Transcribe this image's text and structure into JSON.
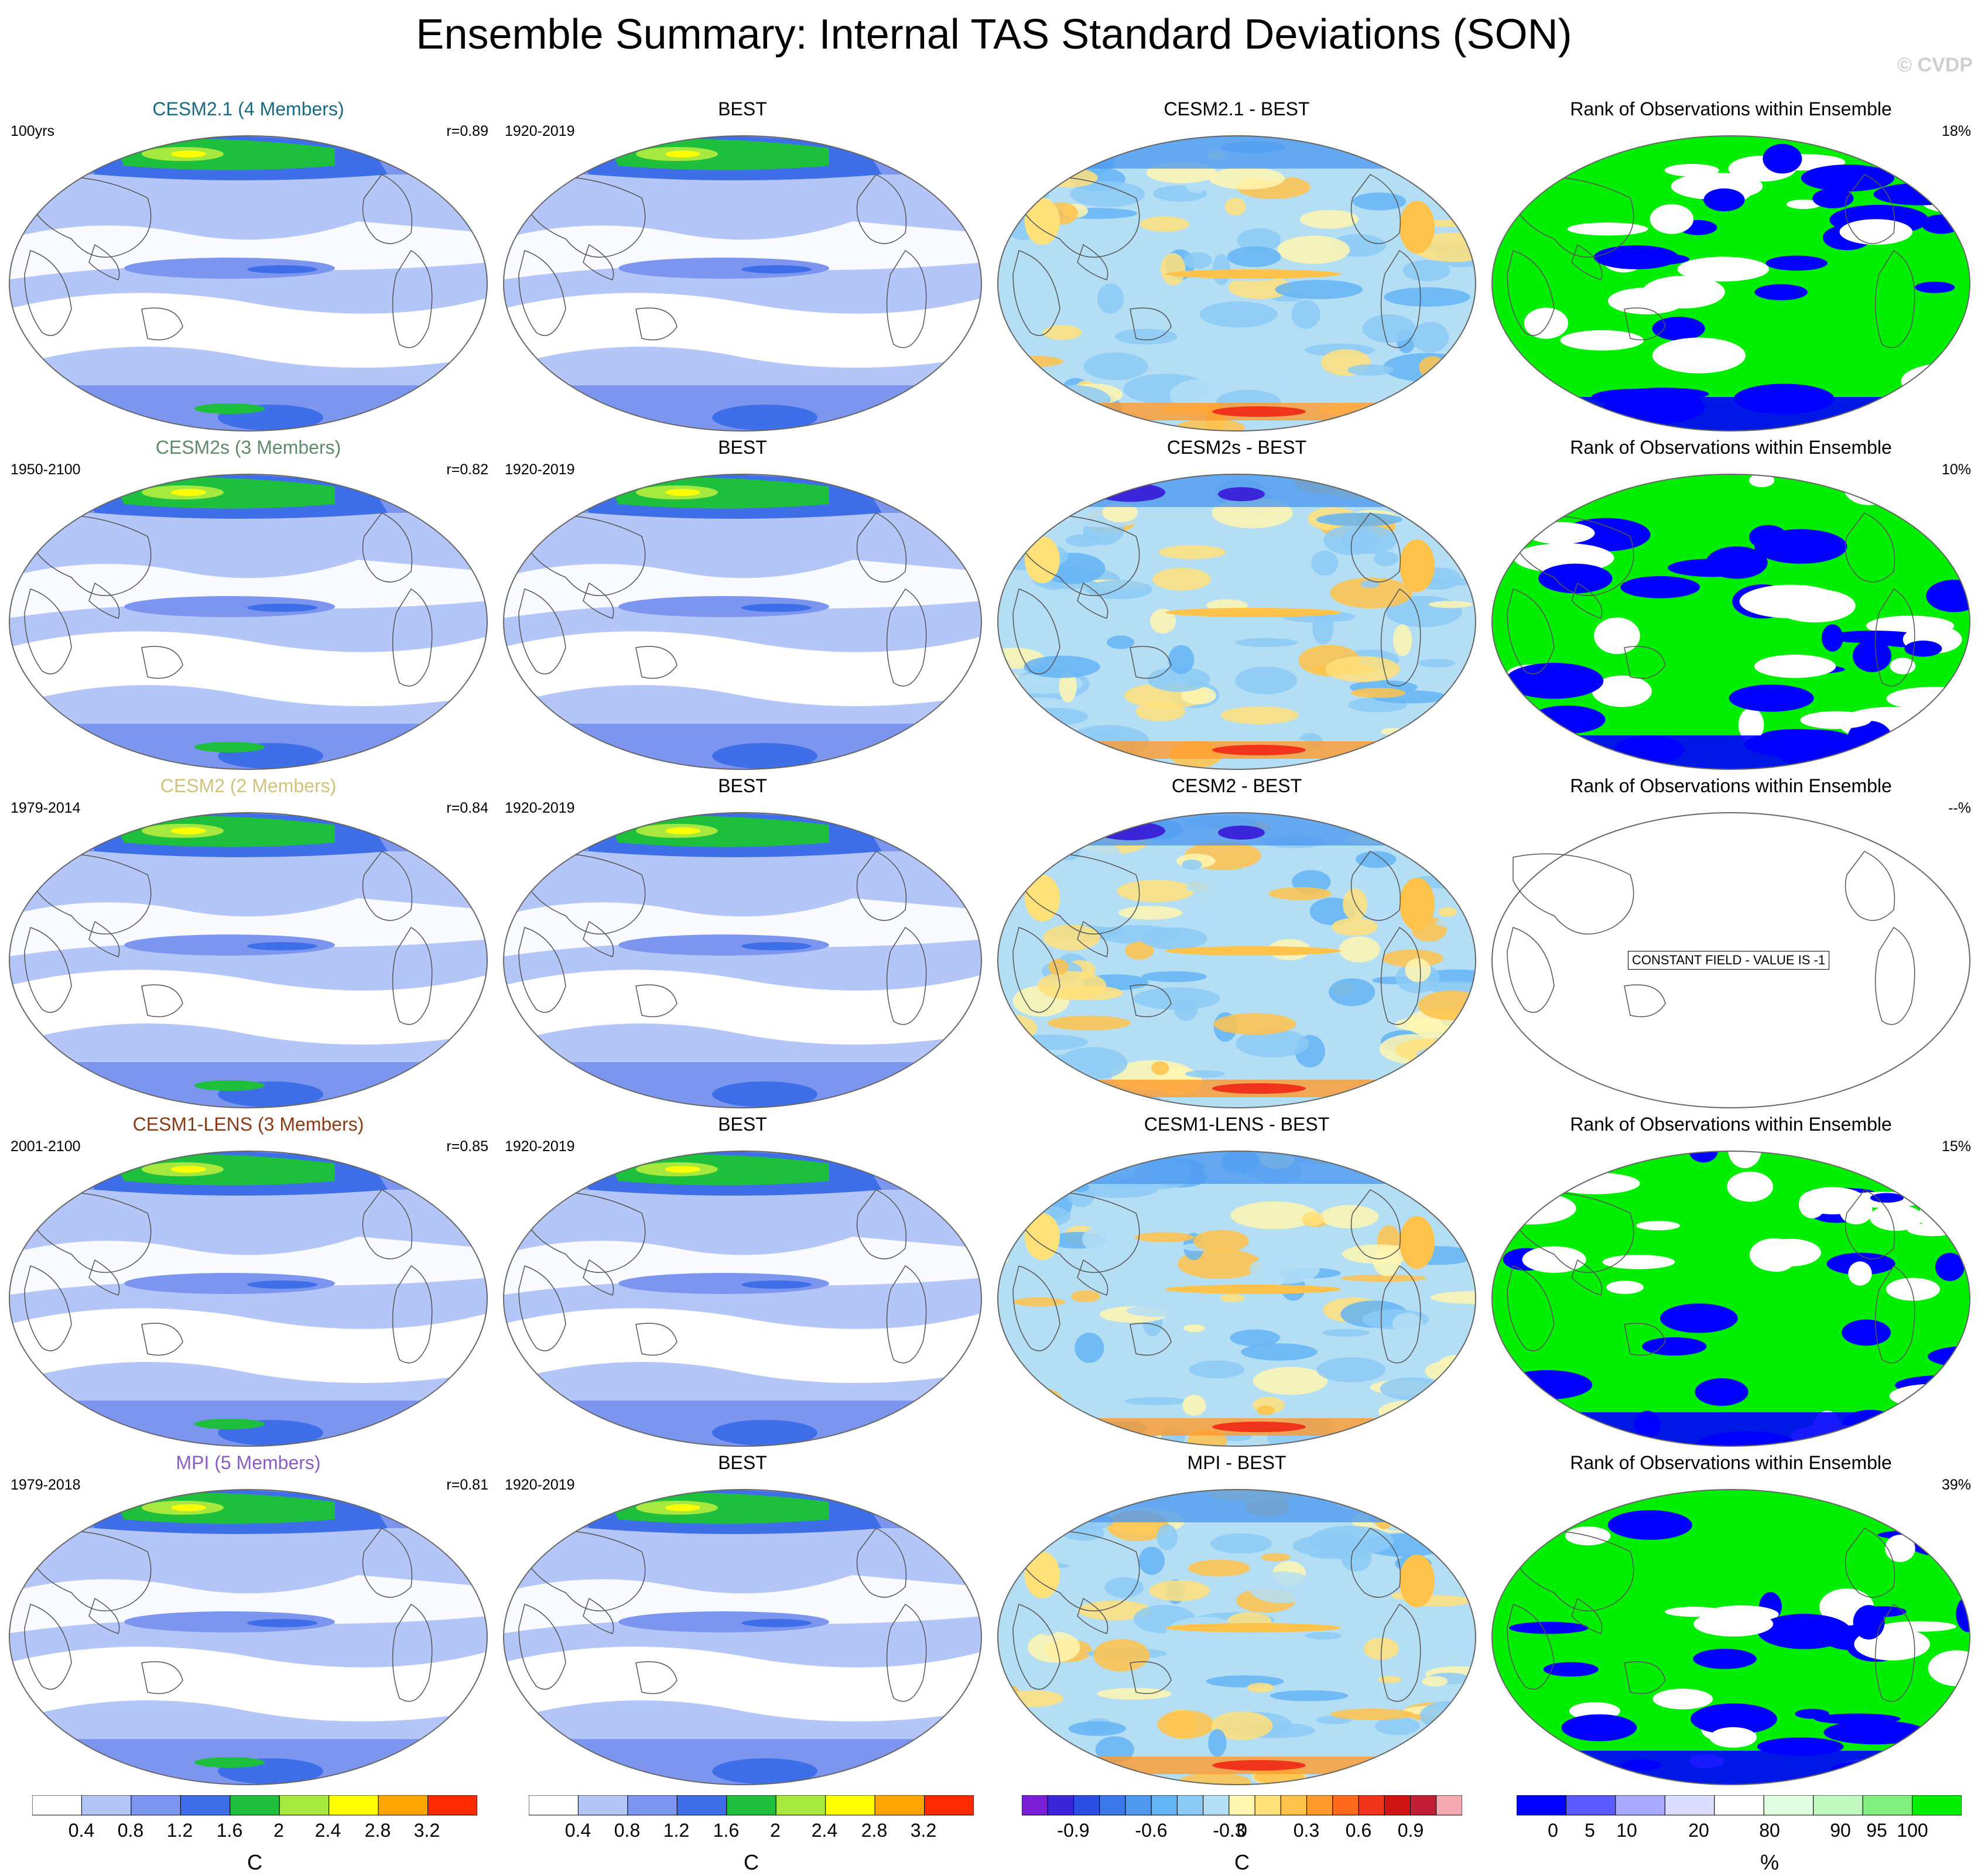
{
  "title": "Ensemble Summary: Internal TAS Standard Deviations (SON)",
  "copyright": "© CVDP",
  "rows": [
    {
      "model": {
        "title": "CESM2.1 (4 Members)",
        "title_color": "#1a6a84",
        "left_label": "100yrs",
        "right_label": "r=0.89"
      },
      "obs": {
        "title": "BEST",
        "left_label": "1920-2019"
      },
      "diff": {
        "title": "CESM2.1 - BEST"
      },
      "rank": {
        "title": "Rank of Observations within Ensemble",
        "right_label": "18%",
        "constant_text": ""
      }
    },
    {
      "model": {
        "title": "CESM2s (3 Members)",
        "title_color": "#5f8a6c",
        "left_label": "1950-2100",
        "right_label": "r=0.82"
      },
      "obs": {
        "title": "BEST",
        "left_label": "1920-2019"
      },
      "diff": {
        "title": "CESM2s - BEST"
      },
      "rank": {
        "title": "Rank of Observations within Ensemble",
        "right_label": "10%",
        "constant_text": ""
      }
    },
    {
      "model": {
        "title": "CESM2 (2 Members)",
        "title_color": "#d1c27c",
        "left_label": "1979-2014",
        "right_label": "r=0.84"
      },
      "obs": {
        "title": "BEST",
        "left_label": "1920-2019"
      },
      "diff": {
        "title": "CESM2 - BEST"
      },
      "rank": {
        "title": "Rank of Observations within Ensemble",
        "right_label": "--%",
        "constant_text": "CONSTANT FIELD - VALUE IS -1"
      }
    },
    {
      "model": {
        "title": "CESM1-LENS (3 Members)",
        "title_color": "#8a3a14",
        "left_label": "2001-2100",
        "right_label": "r=0.85"
      },
      "obs": {
        "title": "BEST",
        "left_label": "1920-2019"
      },
      "diff": {
        "title": "CESM1-LENS - BEST"
      },
      "rank": {
        "title": "Rank of Observations within Ensemble",
        "right_label": "15%",
        "constant_text": ""
      }
    },
    {
      "model": {
        "title": "MPI (5 Members)",
        "title_color": "#8a5cc4",
        "left_label": "1979-2018",
        "right_label": "r=0.81"
      },
      "obs": {
        "title": "BEST",
        "left_label": "1920-2019"
      },
      "diff": {
        "title": "MPI - BEST"
      },
      "rank": {
        "title": "Rank of Observations within Ensemble",
        "right_label": "39%",
        "constant_text": ""
      }
    }
  ],
  "colorbars": {
    "stddev": {
      "colors": [
        "#ffffff",
        "#b4c5f8",
        "#7c96f0",
        "#3f6fe8",
        "#1ebf3c",
        "#a7e83e",
        "#ffff00",
        "#ffa500",
        "#ff2a00"
      ],
      "ticks": [
        "0.4",
        "0.8",
        "1.2",
        "1.6",
        "2",
        "2.4",
        "2.8",
        "3.2"
      ],
      "unit": "C"
    },
    "diff": {
      "colors": [
        "#7a1fd6",
        "#3b26d9",
        "#2b4fe3",
        "#3d78ea",
        "#4f9af0",
        "#64b4f4",
        "#8ccaf6",
        "#b4def4",
        "#fff6b0",
        "#ffe17a",
        "#ffc24a",
        "#ff9a2c",
        "#ff6a1c",
        "#f0341c",
        "#d01414",
        "#c21e36",
        "#f4a8b0"
      ],
      "ticks": [
        "-0.9",
        "-0.6",
        "-0.3",
        "0",
        "0.3",
        "0.6",
        "0.9"
      ],
      "unit": "C"
    },
    "rank": {
      "colors": [
        "#0000ff",
        "#5a5aff",
        "#a8a8ff",
        "#dcdcff",
        "#ffffff",
        "#e0ffe0",
        "#c0f8c0",
        "#80ef80",
        "#00ee00"
      ],
      "ticks": [
        "0",
        "5",
        "10",
        "20",
        "80",
        "90",
        "95",
        "100"
      ],
      "unit": "%"
    }
  }
}
